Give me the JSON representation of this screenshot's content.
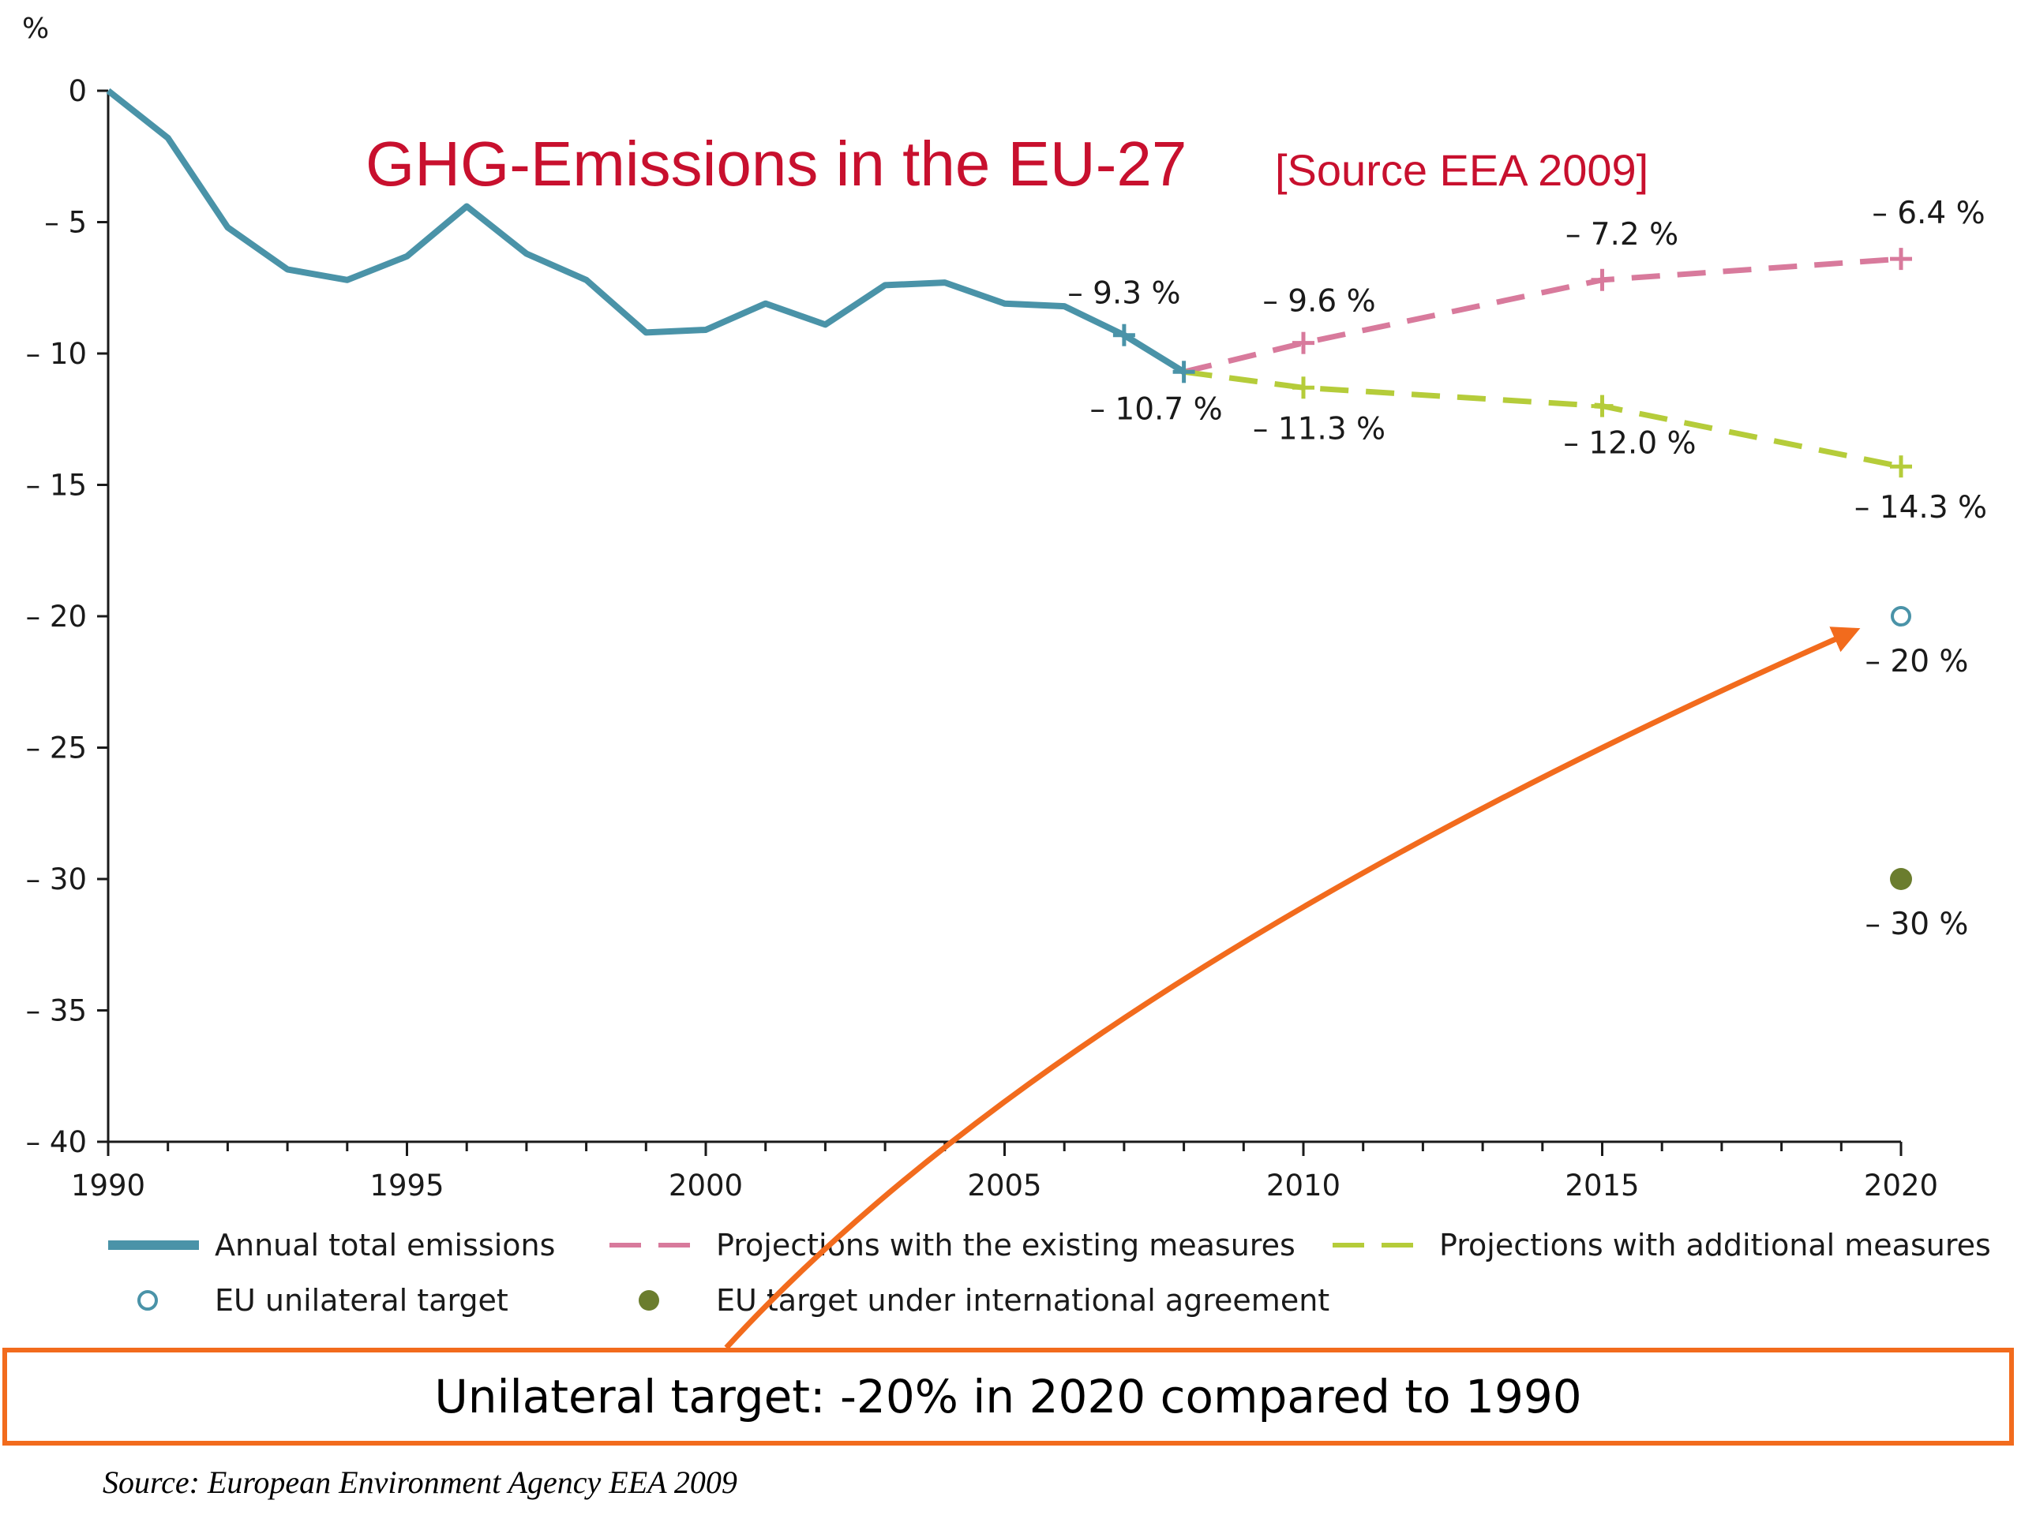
{
  "chart_data": {
    "type": "line",
    "title": "GHG-Emissions in the EU-27",
    "subtitle": "[Source EEA 2009]",
    "ylabel": "%",
    "xlabel": "",
    "xlim": [
      1990,
      2020
    ],
    "ylim": [
      -40,
      0
    ],
    "x_ticks": [
      1990,
      1995,
      2000,
      2005,
      2010,
      2015,
      2020
    ],
    "y_ticks": [
      0,
      -5,
      -10,
      -15,
      -20,
      -25,
      -30,
      -35,
      -40
    ],
    "y_tick_labels": [
      "0",
      "– 5",
      "– 10",
      "– 15",
      "– 20",
      "– 25",
      "– 30",
      "– 35",
      "– 40"
    ],
    "grid": false,
    "legend_position": "bottom",
    "series": [
      {
        "name": "Annual total emissions",
        "style": "solid",
        "color": "#4a93a8",
        "x": [
          1990,
          1991,
          1992,
          1993,
          1994,
          1995,
          1996,
          1997,
          1998,
          1999,
          2000,
          2001,
          2002,
          2003,
          2004,
          2005,
          2006,
          2007,
          2008
        ],
        "values": [
          0,
          -1.8,
          -5.2,
          -6.8,
          -7.2,
          -6.3,
          -4.4,
          -6.2,
          -7.2,
          -9.2,
          -9.1,
          -8.1,
          -8.9,
          -7.4,
          -7.3,
          -8.1,
          -8.2,
          -9.3,
          -10.7
        ]
      },
      {
        "name": "Projections with the existing measures",
        "style": "dashed",
        "color": "#d87a9c",
        "x": [
          2008,
          2010,
          2015,
          2020
        ],
        "values": [
          -10.7,
          -9.6,
          -7.2,
          -6.4
        ]
      },
      {
        "name": "Projections with additional measures",
        "style": "dashed",
        "color": "#b5cc3a",
        "x": [
          2008,
          2010,
          2015,
          2020
        ],
        "values": [
          -10.7,
          -11.3,
          -12.0,
          -14.3
        ]
      },
      {
        "name": "EU unilateral target",
        "style": "hollow-marker",
        "color": "#4a93a8",
        "x": [
          2020
        ],
        "values": [
          -20
        ]
      },
      {
        "name": "EU target under international agreement",
        "style": "filled-marker",
        "color": "#6b7d2e",
        "x": [
          2020
        ],
        "values": [
          -30
        ]
      }
    ],
    "markers": [
      {
        "series": "Annual total emissions",
        "x": 2007,
        "y": -9.3
      },
      {
        "series": "Annual total emissions",
        "x": 2008,
        "y": -10.7
      },
      {
        "series": "Projections with the existing measures",
        "x": 2010,
        "y": -9.6
      },
      {
        "series": "Projections with the existing measures",
        "x": 2015,
        "y": -7.2
      },
      {
        "series": "Projections with the existing measures",
        "x": 2020,
        "y": -6.4
      },
      {
        "series": "Projections with additional measures",
        "x": 2010,
        "y": -11.3
      },
      {
        "series": "Projections with additional measures",
        "x": 2015,
        "y": -12.0
      },
      {
        "series": "Projections with additional measures",
        "x": 2020,
        "y": -14.3
      }
    ],
    "annotations": [
      {
        "text": "– 9.3 %",
        "x": 2007,
        "y": -9.3
      },
      {
        "text": "– 10.7 %",
        "x": 2008,
        "y": -10.7
      },
      {
        "text": "– 9.6 %",
        "x": 2010,
        "y": -9.6
      },
      {
        "text": "– 11.3 %",
        "x": 2010,
        "y": -11.3
      },
      {
        "text": "– 7.2 %",
        "x": 2015,
        "y": -7.2
      },
      {
        "text": "– 12.0 %",
        "x": 2015,
        "y": -12.0
      },
      {
        "text": "– 6.4 %",
        "x": 2020,
        "y": -6.4
      },
      {
        "text": "– 14.3 %",
        "x": 2020,
        "y": -14.3
      },
      {
        "text": "– 20 %",
        "x": 2020,
        "y": -20
      },
      {
        "text": "– 30 %",
        "x": 2020,
        "y": -30
      }
    ],
    "arrow": {
      "color": "#f26b1d",
      "points_to": {
        "x": 2020,
        "y": -20
      }
    }
  },
  "callout": {
    "text": "Unilateral target: -20% in 2020 compared to 1990",
    "border_color": "#f26b1d"
  },
  "source_note": "Source: European Environment Agency EEA 2009"
}
